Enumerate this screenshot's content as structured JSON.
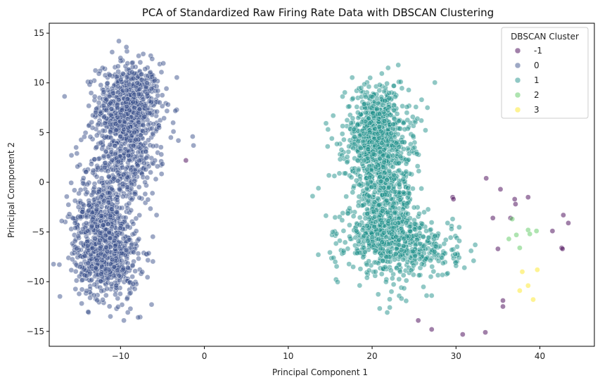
{
  "chart_data": {
    "type": "scatter",
    "title": "PCA of Standardized Raw Firing Rate Data with DBSCAN Clustering",
    "xlabel": "Principal Component 1",
    "ylabel": "Principal Component 2",
    "xlim": [
      -18.5,
      46.5
    ],
    "ylim": [
      -16.5,
      16
    ],
    "xticks": [
      -10,
      0,
      10,
      20,
      30,
      40
    ],
    "yticks": [
      -15,
      -10,
      -5,
      0,
      5,
      10,
      15
    ],
    "xtick_labels": [
      "−10",
      "0",
      "10",
      "20",
      "30",
      "40"
    ],
    "ytick_labels": [
      "−15",
      "−10",
      "−5",
      "0",
      "5",
      "10",
      "15"
    ],
    "grid": false,
    "legend": {
      "title": "DBSCAN Cluster",
      "placement": "upper-right"
    },
    "series": [
      {
        "name": "-1",
        "color": "#440154",
        "points": [
          [
            -2.2,
            2.2
          ],
          [
            29.6,
            -1.5
          ],
          [
            29.7,
            -1.7
          ],
          [
            33.6,
            0.4
          ],
          [
            35.3,
            -0.7
          ],
          [
            37.0,
            -1.7
          ],
          [
            37.1,
            -2.2
          ],
          [
            38.6,
            -1.5
          ],
          [
            34.4,
            -3.6
          ],
          [
            36.5,
            -3.6
          ],
          [
            42.8,
            -3.3
          ],
          [
            43.4,
            -4.1
          ],
          [
            41.5,
            -4.9
          ],
          [
            35.0,
            -6.7
          ],
          [
            42.6,
            -6.6
          ],
          [
            42.7,
            -6.7
          ],
          [
            35.6,
            -11.9
          ],
          [
            35.6,
            -12.5
          ],
          [
            25.5,
            -13.9
          ],
          [
            27.1,
            -14.8
          ],
          [
            30.8,
            -15.3
          ],
          [
            33.5,
            -15.1
          ]
        ]
      },
      {
        "name": "0",
        "color": "#3b528b",
        "clusters": [
          {
            "cx": -9.0,
            "cy": 7.6,
            "sx": 1.9,
            "sy": 2.2,
            "n": 700
          },
          {
            "cx": -9.6,
            "cy": 2.2,
            "sx": 2.0,
            "sy": 2.1,
            "n": 320
          },
          {
            "cx": -12.2,
            "cy": -3.6,
            "sx": 1.8,
            "sy": 2.2,
            "n": 420
          },
          {
            "cx": -11.6,
            "cy": -7.8,
            "sx": 1.9,
            "sy": 2.0,
            "n": 520
          }
        ],
        "points": [
          [
            -10.2,
            14.2
          ],
          [
            -11.0,
            13.1
          ],
          [
            -10.0,
            12.5
          ],
          [
            -9.3,
            13.6
          ],
          [
            -16.1,
            -3.2
          ],
          [
            -15.4,
            -4.6
          ],
          [
            -15.2,
            2.9
          ],
          [
            -15.3,
            3.5
          ],
          [
            -7.9,
            -13.6
          ],
          [
            -9.6,
            -13.9
          ],
          [
            -11.2,
            -13.5
          ],
          [
            -6.3,
            -12.3
          ],
          [
            -5.4,
            5.5
          ],
          [
            -4.0,
            4.5
          ],
          [
            -1.4,
            4.6
          ],
          [
            -1.3,
            3.7
          ],
          [
            -3.1,
            4.2
          ],
          [
            -5.6,
            1.6
          ],
          [
            -5.7,
            -3.3
          ],
          [
            -6.2,
            -1.1
          ]
        ]
      },
      {
        "name": "1",
        "color": "#21918c",
        "clusters": [
          {
            "cx": 20.6,
            "cy": 4.8,
            "sx": 1.9,
            "sy": 2.4,
            "n": 760
          },
          {
            "cx": 21.6,
            "cy": -1.0,
            "sx": 1.8,
            "sy": 2.0,
            "n": 340
          },
          {
            "cx": 21.6,
            "cy": -5.6,
            "sx": 2.4,
            "sy": 1.8,
            "n": 520
          },
          {
            "cx": 26.5,
            "cy": -6.8,
            "sx": 1.9,
            "sy": 1.4,
            "n": 150
          }
        ],
        "points": [
          [
            12.9,
            -1.4
          ],
          [
            13.6,
            -0.6
          ],
          [
            14.7,
            3.6
          ],
          [
            15.2,
            4.4
          ],
          [
            15.3,
            -5.0
          ],
          [
            15.4,
            -7.6
          ],
          [
            15.6,
            -8.0
          ],
          [
            18.7,
            9.5
          ],
          [
            20.9,
            9.8
          ],
          [
            23.4,
            10.1
          ],
          [
            22.6,
            9.7
          ],
          [
            25.9,
            8.3
          ],
          [
            25.4,
            6.4
          ],
          [
            26.6,
            7.5
          ],
          [
            29.0,
            -4.1
          ],
          [
            29.6,
            -3.7
          ],
          [
            29.5,
            -6.8
          ],
          [
            30.1,
            -5.6
          ],
          [
            30.4,
            -5.9
          ],
          [
            31.8,
            -6.9
          ],
          [
            32.1,
            -7.9
          ],
          [
            31.0,
            -8.6
          ],
          [
            30.0,
            -8.4
          ],
          [
            27.0,
            -9.5
          ],
          [
            27.1,
            -11.4
          ],
          [
            26.5,
            -11.4
          ],
          [
            22.1,
            -12.6
          ],
          [
            21.8,
            -13.1
          ],
          [
            20.9,
            -12.7
          ],
          [
            22.3,
            -11.0
          ],
          [
            23.5,
            -11.7
          ],
          [
            16.5,
            -3.1
          ],
          [
            16.1,
            0.9
          ]
        ]
      },
      {
        "name": "2",
        "color": "#5ec962",
        "points": [
          [
            36.3,
            -5.7
          ],
          [
            36.7,
            -3.7
          ],
          [
            37.2,
            -5.3
          ],
          [
            37.6,
            -6.6
          ],
          [
            38.6,
            -4.8
          ],
          [
            38.8,
            -5.2
          ],
          [
            39.6,
            -4.9
          ]
        ]
      },
      {
        "name": "3",
        "color": "#fde725",
        "points": [
          [
            37.6,
            -10.9
          ],
          [
            37.9,
            -9.0
          ],
          [
            38.6,
            -10.4
          ],
          [
            39.2,
            -11.8
          ],
          [
            39.7,
            -8.8
          ]
        ]
      }
    ]
  }
}
